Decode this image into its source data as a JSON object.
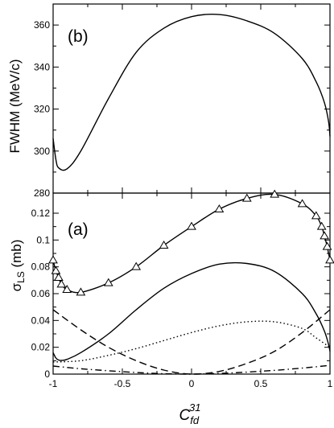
{
  "chart_data": [
    {
      "panel_label": "(b)",
      "type": "line",
      "ylabel": "FWHM (MeV/c)",
      "xlim": [
        -1,
        1
      ],
      "ylim": [
        280,
        370
      ],
      "yticks": [
        280,
        300,
        320,
        340,
        360
      ],
      "xticks": [
        -1,
        -0.5,
        0,
        0.5,
        1
      ],
      "show_x_tick_labels": false,
      "series": [
        {
          "style": "solid",
          "marker": "none",
          "x": [
            -1.0,
            -0.98,
            -0.96,
            -0.9,
            -0.8,
            -0.6,
            -0.4,
            -0.2,
            0.0,
            0.2,
            0.4,
            0.6,
            0.8,
            0.9,
            0.96,
            0.99,
            1.0
          ],
          "y": [
            306,
            296,
            292,
            291.5,
            300,
            325,
            347,
            358.5,
            364,
            365,
            362,
            356,
            344,
            333,
            323,
            314,
            307
          ]
        }
      ]
    },
    {
      "panel_label": "(a)",
      "type": "line",
      "ylabel": "σ",
      "ylabel_sub": "LS",
      "ylabel_unit": " (mb)",
      "xlabel": "C",
      "xlabel_sub": "fd",
      "xlabel_sup": "31",
      "xlim": [
        -1,
        1
      ],
      "ylim": [
        0,
        0.135
      ],
      "yticks": [
        0,
        0.02,
        0.04,
        0.06,
        0.08,
        0.1,
        0.12
      ],
      "ytick_labels": [
        "0",
        "0.02",
        "0.04",
        "0.06",
        "0.08",
        "0.1",
        "0.12"
      ],
      "xticks": [
        -1,
        -0.5,
        0,
        0.5,
        1
      ],
      "xtick_labels": [
        "-1",
        "-0.5",
        "0",
        "0.5",
        "1"
      ],
      "series": [
        {
          "style": "solid",
          "marker": "triangle",
          "x": [
            -1.0,
            -0.98,
            -0.96,
            -0.94,
            -0.9,
            -0.8,
            -0.6,
            -0.4,
            -0.2,
            0.0,
            0.2,
            0.4,
            0.6,
            0.8,
            0.9,
            0.94,
            0.96,
            0.98,
            1.0
          ],
          "y": [
            0.085,
            0.077,
            0.072,
            0.067,
            0.063,
            0.061,
            0.068,
            0.08,
            0.096,
            0.11,
            0.123,
            0.131,
            0.134,
            0.127,
            0.118,
            0.11,
            0.103,
            0.095,
            0.085
          ]
        },
        {
          "style": "solid",
          "marker": "none",
          "x": [
            -1.0,
            -0.98,
            -0.96,
            -0.94,
            -0.9,
            -0.8,
            -0.6,
            -0.4,
            -0.2,
            0.0,
            0.2,
            0.4,
            0.6,
            0.8,
            0.9,
            0.96,
            0.99,
            1.0
          ],
          "y": [
            0.016,
            0.012,
            0.0105,
            0.0102,
            0.011,
            0.016,
            0.03,
            0.048,
            0.064,
            0.075,
            0.082,
            0.0825,
            0.0765,
            0.06,
            0.045,
            0.032,
            0.022,
            0.017
          ]
        },
        {
          "style": "dashed",
          "marker": "none",
          "x": [
            -1.0,
            -0.8,
            -0.6,
            -0.4,
            -0.2,
            0.0,
            0.2,
            0.4,
            0.6,
            0.8,
            1.0
          ],
          "y": [
            0.048,
            0.033,
            0.02,
            0.01,
            0.003,
            0.0,
            0.002,
            0.008,
            0.017,
            0.031,
            0.048
          ]
        },
        {
          "style": "dotted",
          "marker": "none",
          "x": [
            -1.0,
            -0.8,
            -0.6,
            -0.4,
            -0.2,
            0.0,
            0.2,
            0.4,
            0.6,
            0.8,
            0.9,
            1.0
          ],
          "y": [
            0.009,
            0.01,
            0.014,
            0.019,
            0.025,
            0.031,
            0.036,
            0.039,
            0.039,
            0.034,
            0.027,
            0.02
          ]
        },
        {
          "style": "dashdot",
          "marker": "none",
          "x": [
            -1.0,
            -0.8,
            -0.6,
            -0.4,
            -0.2,
            0.0,
            0.2,
            0.4,
            0.6,
            0.8,
            1.0
          ],
          "y": [
            0.006,
            0.004,
            0.0025,
            0.0012,
            0.0003,
            0.0,
            0.0005,
            0.0015,
            0.0028,
            0.0045,
            0.0065
          ]
        }
      ]
    }
  ]
}
